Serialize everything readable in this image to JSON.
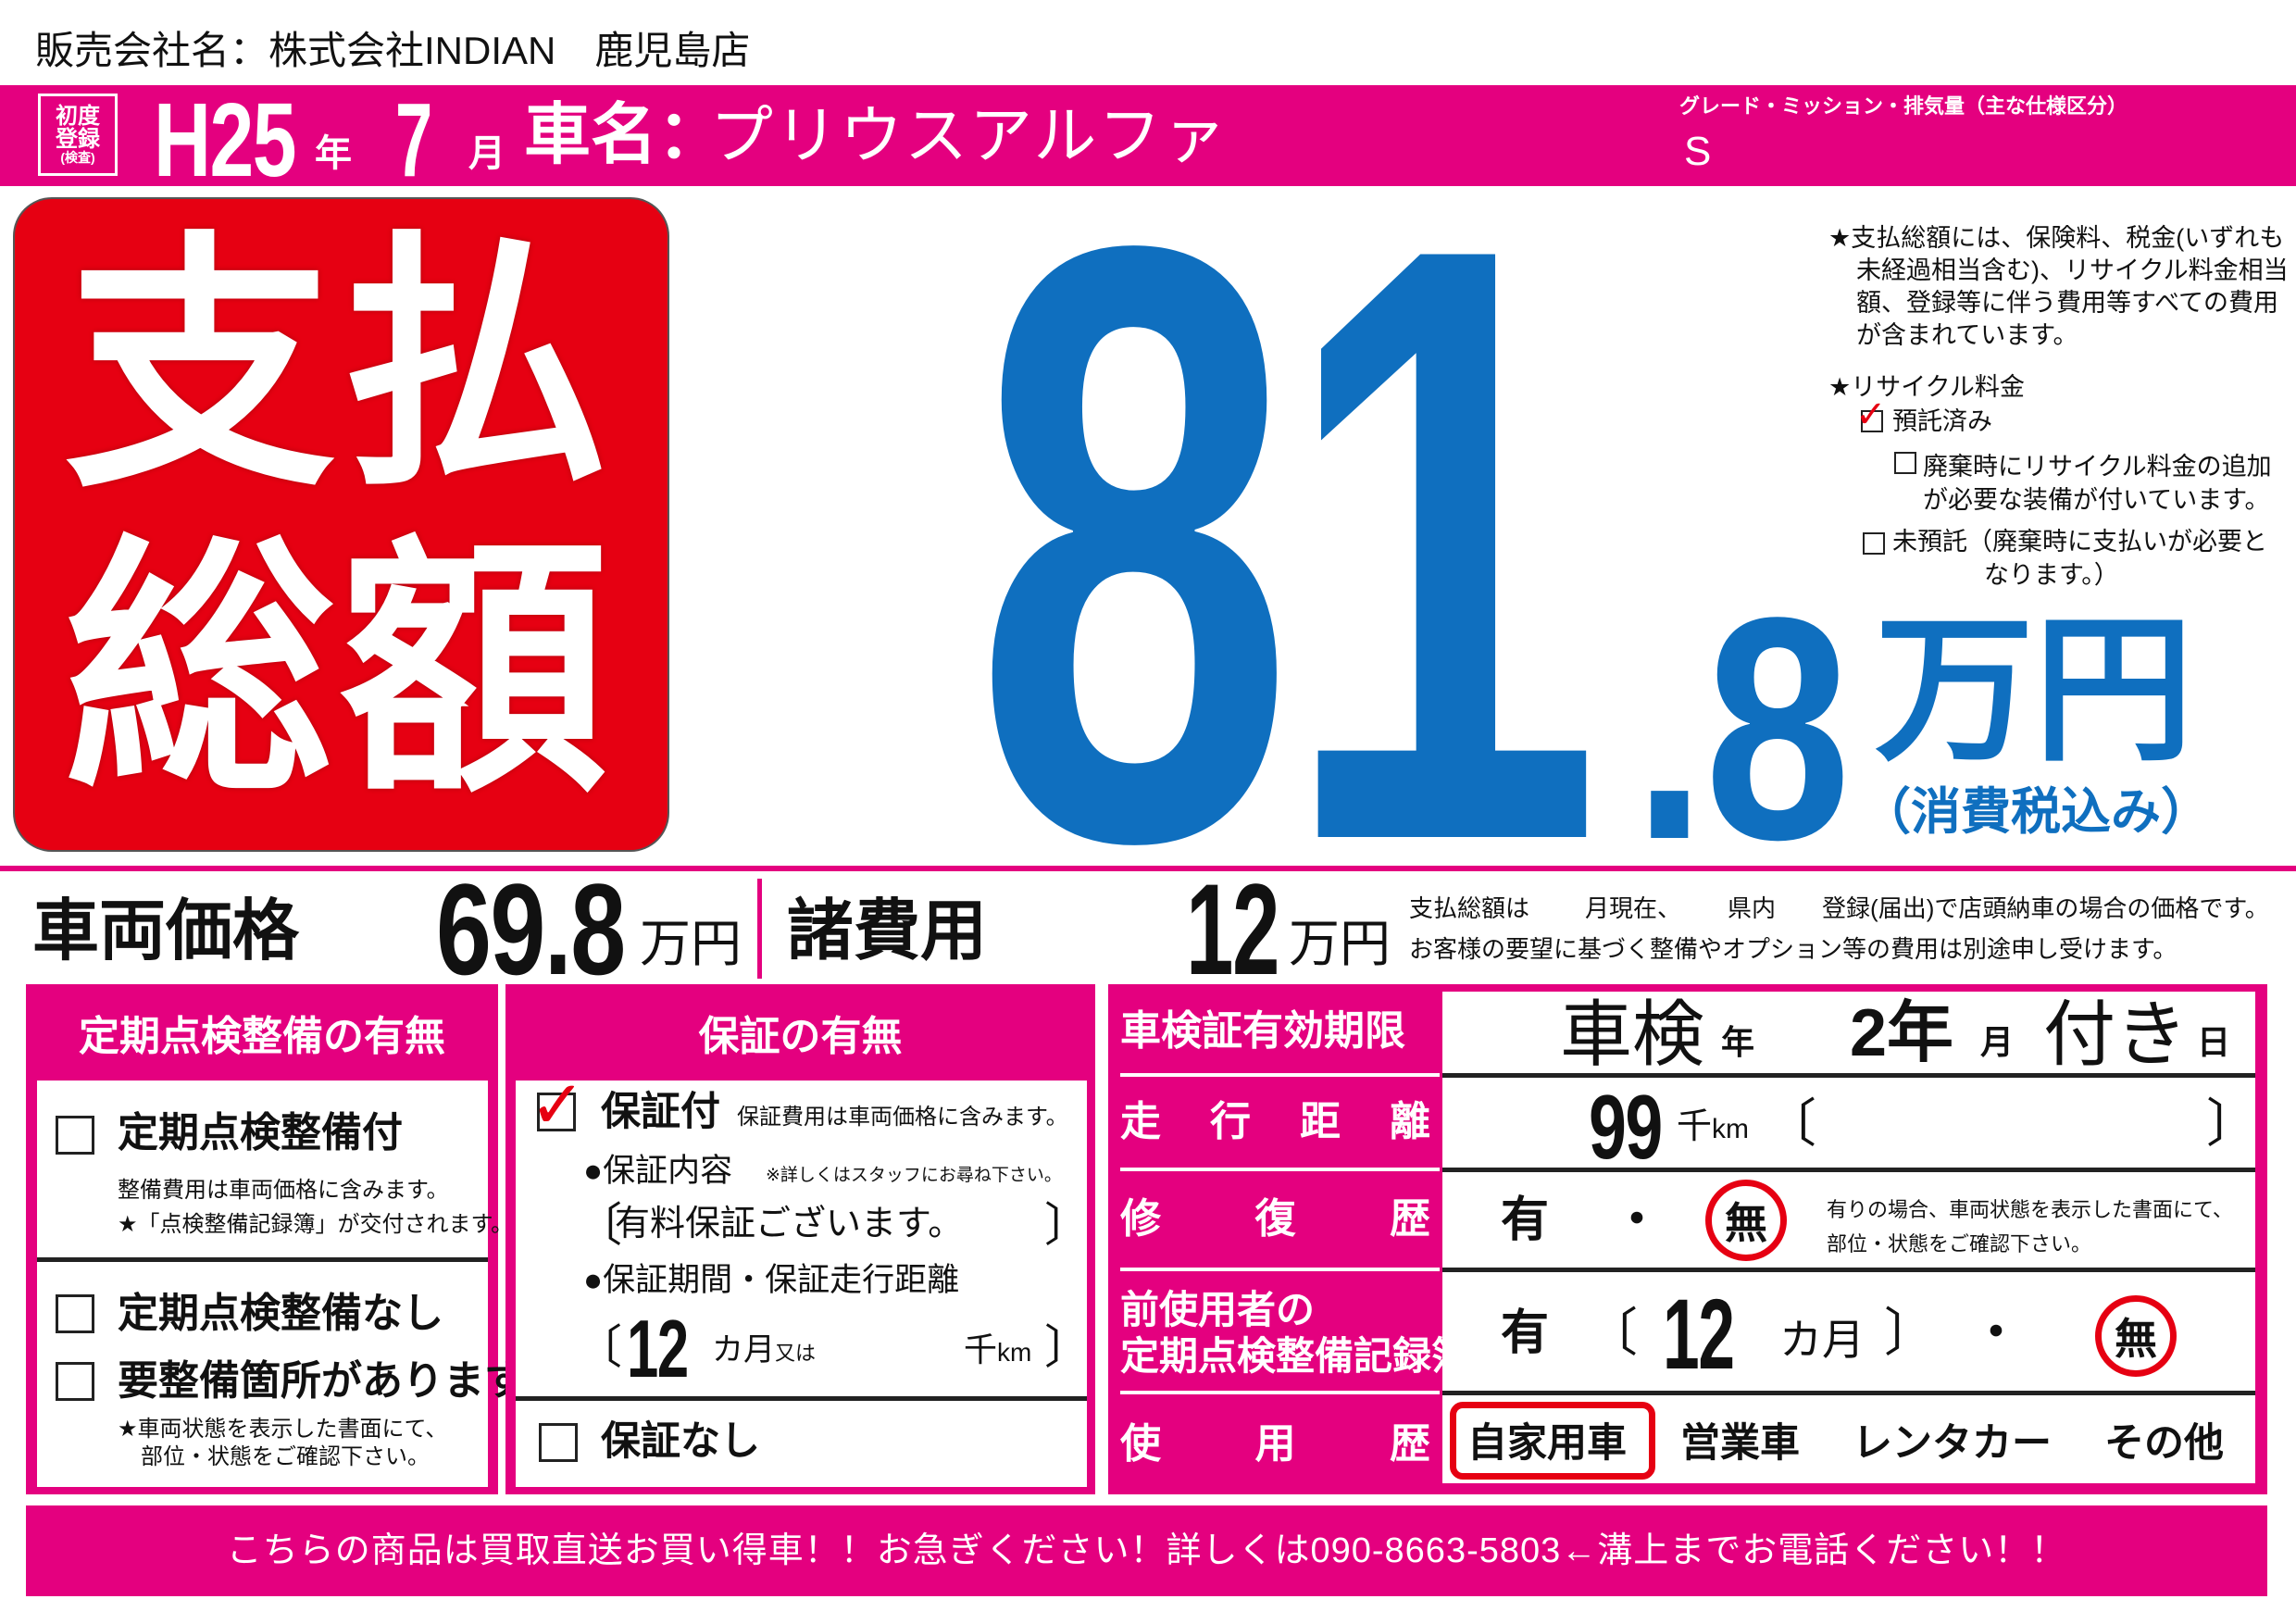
{
  "dealer": {
    "label": "販売会社名：",
    "name": "株式会社INDIAN　鹿児島店"
  },
  "header": {
    "first_reg_badge": [
      "初度",
      "登録",
      "(検査)"
    ],
    "era_year": "H25",
    "year_unit": "年",
    "month": "7",
    "month_unit": "月",
    "car_name_label": "車名：",
    "car_name": "プリウスアルファ",
    "grade_label": "グレード・ミッション・排気量（主な仕様区分）",
    "grade": "S"
  },
  "total": {
    "label_line1": "支払",
    "label_line2": "総額",
    "integer": "81",
    "decimal": ".8",
    "unit": "万円",
    "tax_note": "（消費税込み）",
    "accent_color": "#0f6fbf",
    "badge_color": "#e60012"
  },
  "notes": {
    "included": [
      "★支払総額には、保険料、税金(いずれも",
      "未経過相当含む)、リサイクル料金相当",
      "額、登録等に伴う費用等すべての費用",
      "が含まれています。"
    ],
    "recycle_title": "★リサイクル料金",
    "deposited": {
      "label": "預託済み",
      "checked": true
    },
    "additional": {
      "lines": [
        "廃棄時にリサイクル料金の追加",
        "が必要な装備が付いています。"
      ],
      "checked": false
    },
    "undeposited": {
      "lines": [
        "未預託（廃棄時に支払いが必要と",
        "なります。）"
      ],
      "checked": false
    }
  },
  "prices": {
    "vehicle_label": "車両価格",
    "vehicle_value": "69.8",
    "vehicle_unit": "万円",
    "fees_label": "諸費用",
    "fees_value": "12",
    "fees_unit": "万円",
    "condition_parts": [
      "支払総額は",
      "月現在、",
      "県内",
      "登録(届出)で店頭納車の場合の価格です。"
    ],
    "condition_line2": "お客様の要望に基づく整備やオプション等の費用は別途申し受けます。"
  },
  "inspection": {
    "title": "定期点検整備の有無",
    "with": {
      "label": "定期点検整備付",
      "checked": false,
      "notes": [
        "整備費用は車両価格に含みます。",
        "★「点検整備記録簿」が交付されます。"
      ]
    },
    "without": {
      "label": "定期点検整備なし",
      "checked": false
    },
    "needs": {
      "label": "要整備箇所があります",
      "checked": false,
      "notes": [
        "★車両状態を表示した書面にて、",
        "部位・状態をご確認下さい。"
      ]
    }
  },
  "warranty": {
    "title": "保証の有無",
    "with": {
      "label": "保証付",
      "checked": true,
      "note": "保証費用は車両価格に含みます。"
    },
    "content_label": "●保証内容",
    "content_note": "※詳しくはスタッフにお尋ね下さい。",
    "content_value": "有料保証ございます。",
    "period_label": "●保証期間・保証走行距離",
    "period_months": "12",
    "months_unit": "カ月",
    "or": "又は",
    "distance_unit_k": "千",
    "distance_unit": "km",
    "none": {
      "label": "保証なし",
      "checked": false
    }
  },
  "details": {
    "shaken": {
      "label": "車検証有効期限",
      "prefix": "車検",
      "year_unit": "年",
      "value": "2年",
      "month_unit": "月",
      "suffix": "付き",
      "day_unit": "日"
    },
    "mileage": {
      "label_chars": [
        "走",
        "行",
        "距",
        "離"
      ],
      "value": "99",
      "unit_k": "千",
      "unit": "km"
    },
    "repair": {
      "label_chars": [
        "修",
        "復",
        "歴"
      ],
      "yes": "有",
      "dot": "・",
      "no": "無",
      "selected": "無",
      "note": [
        "有りの場合、車両状態を表示した書面にて、",
        "部位・状態をご確認下さい。"
      ]
    },
    "records": {
      "label_lines": [
        "前使用者の",
        "定期点検整備記録簿"
      ],
      "yes": "有",
      "months": "12",
      "months_unit": "カ月",
      "dot": "・",
      "no": "無",
      "selected": "無"
    },
    "usage": {
      "label_chars": [
        "使",
        "用",
        "歴"
      ],
      "options": [
        "自家用車",
        "営業車",
        "レンタカー",
        "その他"
      ],
      "selected": "自家用車"
    }
  },
  "footer": {
    "message": "こちらの商品は買取直送お買い得車！！お急ぎください！詳しくは090-8663-5803←溝上までお電話ください！！"
  },
  "colors": {
    "magenta": "#e4007f",
    "red": "#e60012",
    "blue": "#0f6fbf"
  }
}
